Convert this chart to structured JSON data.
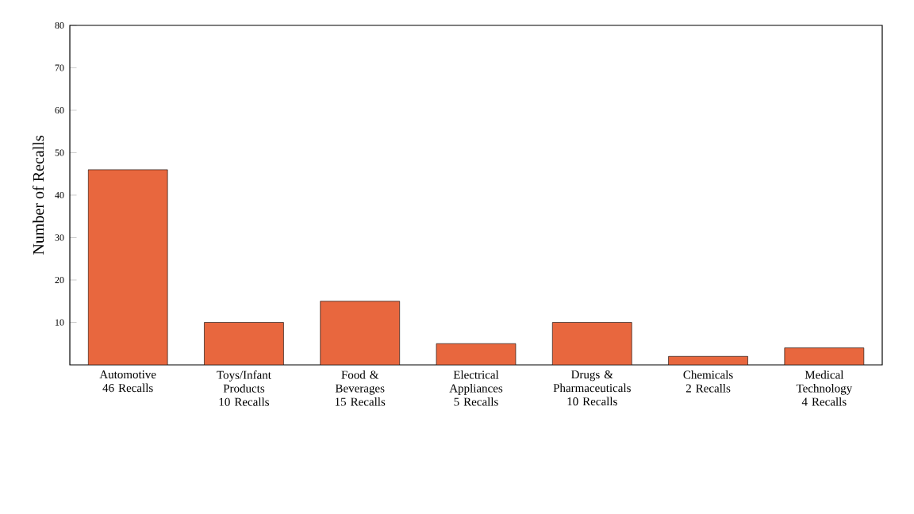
{
  "chart_data": {
    "type": "bar",
    "ylabel": "Number of Recalls",
    "categories": [
      "Automotive",
      "Toys/Infant Products",
      "Food & Beverages",
      "Electrical Appliances",
      "Drugs & Pharmaceuticals",
      "Chemicals",
      "Medical Technology"
    ],
    "values": [
      46,
      10,
      15,
      5,
      10,
      2,
      4
    ],
    "value_labels": [
      "46 Recalls",
      "10 Recalls",
      "15 Recalls",
      "5 Recalls",
      "10 Recalls",
      "2 Recalls",
      "4 Recalls"
    ],
    "color": "#e8673e",
    "ylim": [
      0,
      80
    ],
    "yticks": [
      10,
      20,
      30,
      40,
      50,
      60,
      70,
      80
    ]
  }
}
